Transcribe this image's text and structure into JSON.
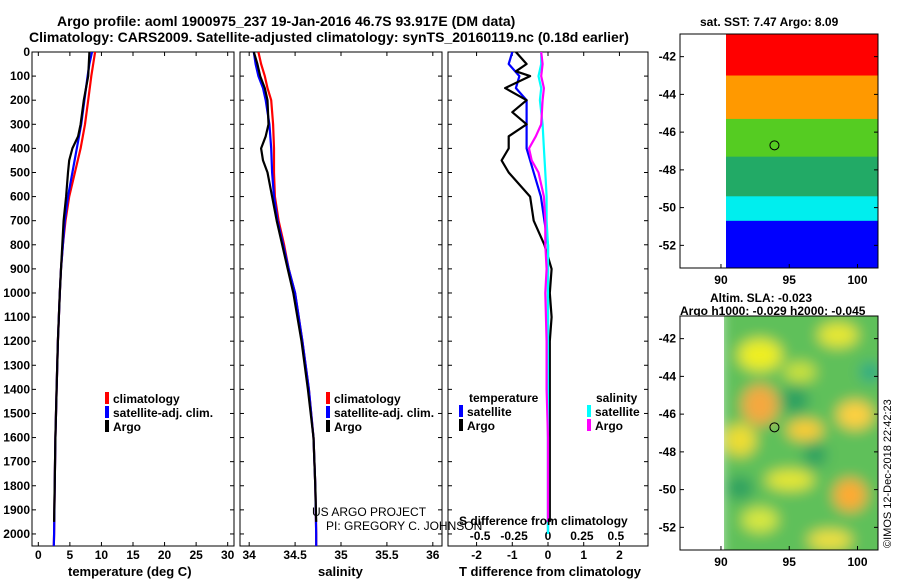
{
  "header": {
    "title1": "Argo profile: aoml 1900975_237 19-Jan-2016 46.7S 93.917E (DM data)",
    "title2": "Climatology: CARS2009. Satellite-adjusted climatology: synTS_20160119.nc (0.18d earlier)"
  },
  "side": {
    "sst_title": "sat. SST: 7.47 Argo: 8.09",
    "sla_title1": "Altim. SLA: -0.023",
    "sla_title2": "Argo h1000: -0.029 h2000: -0.045",
    "credit": "©IMOS 12-Dec-2018 22:42:23"
  },
  "colors": {
    "climatology": "#ff0000",
    "satellite": "#0000ff",
    "argo": "#000000",
    "sal_satellite": "#00ffff",
    "sal_argo": "#ff00ff"
  },
  "chart_data": [
    {
      "type": "line",
      "panel": "temperature",
      "xlabel": "temperature (deg C)",
      "xlim": [
        -1,
        31
      ],
      "xticks": [
        "0",
        "5",
        "10",
        "15",
        "20",
        "25",
        "30"
      ],
      "ylim": [
        0,
        2050
      ],
      "yticks": [
        "0",
        "100",
        "200",
        "300",
        "400",
        "500",
        "600",
        "700",
        "800",
        "900",
        "1000",
        "1100",
        "1200",
        "1300",
        "1400",
        "1500",
        "1600",
        "1700",
        "1800",
        "1900",
        "2000"
      ],
      "legend": [
        "climatology",
        "satellite-adj. clim.",
        "Argo"
      ],
      "series": [
        {
          "name": "climatology",
          "color": "#ff0000",
          "depth": [
            0,
            50,
            100,
            200,
            300,
            400,
            500,
            600,
            700,
            800,
            900,
            1000,
            1200,
            1400,
            1600,
            1800,
            2000,
            2050
          ],
          "values": [
            9.0,
            8.7,
            8.4,
            7.9,
            7.4,
            6.7,
            5.8,
            4.9,
            4.3,
            3.9,
            3.6,
            3.4,
            3.1,
            2.9,
            2.7,
            2.6,
            2.5,
            2.45
          ]
        },
        {
          "name": "satellite-adj. clim.",
          "color": "#0000ff",
          "depth": [
            0,
            50,
            100,
            200,
            300,
            400,
            500,
            600,
            700,
            800,
            900,
            1000,
            1200,
            1400,
            1600,
            1800,
            2000,
            2050
          ],
          "values": [
            8.5,
            8.1,
            7.8,
            7.3,
            6.8,
            6.1,
            5.4,
            4.7,
            4.2,
            3.9,
            3.6,
            3.4,
            3.1,
            2.9,
            2.7,
            2.6,
            2.5,
            2.45
          ]
        },
        {
          "name": "Argo",
          "color": "#000000",
          "depth": [
            0,
            50,
            100,
            200,
            300,
            350,
            400,
            450,
            500,
            600,
            700,
            800,
            900,
            1000,
            1200,
            1400,
            1600,
            1800,
            1950
          ],
          "values": [
            8.1,
            8.0,
            7.9,
            7.2,
            6.7,
            6.3,
            5.4,
            4.9,
            4.7,
            4.4,
            4.0,
            3.8,
            3.6,
            3.4,
            3.1,
            2.9,
            2.7,
            2.6,
            2.5
          ]
        }
      ]
    },
    {
      "type": "line",
      "panel": "salinity",
      "xlabel": "salinity",
      "xlim": [
        33.9,
        36.1
      ],
      "xticks": [
        "34",
        "34.5",
        "35",
        "35.5",
        "36"
      ],
      "ylim": [
        0,
        2050
      ],
      "legend": [
        "climatology",
        "satellite-adj. clim.",
        "Argo"
      ],
      "annotation": [
        "US ARGO PROJECT",
        "PI: GREGORY C. JOHNSON"
      ],
      "series": [
        {
          "name": "climatology",
          "color": "#ff0000",
          "depth": [
            0,
            50,
            100,
            150,
            200,
            300,
            400,
            500,
            600,
            700,
            800,
            900,
            1000,
            1200,
            1400,
            1600,
            1800,
            2000,
            2050
          ],
          "values": [
            34.1,
            34.13,
            34.17,
            34.2,
            34.24,
            34.26,
            34.27,
            34.27,
            34.28,
            34.32,
            34.38,
            34.43,
            34.5,
            34.58,
            34.65,
            34.7,
            34.72,
            34.73,
            34.73
          ]
        },
        {
          "name": "satellite-adj. clim.",
          "color": "#0000ff",
          "depth": [
            0,
            50,
            100,
            150,
            200,
            300,
            400,
            500,
            600,
            700,
            800,
            900,
            1000,
            1200,
            1400,
            1600,
            1800,
            2000,
            2050
          ],
          "values": [
            34.05,
            34.07,
            34.1,
            34.15,
            34.18,
            34.22,
            34.24,
            34.25,
            34.27,
            34.31,
            34.37,
            34.43,
            34.5,
            34.58,
            34.65,
            34.7,
            34.72,
            34.73,
            34.73
          ]
        },
        {
          "name": "Argo",
          "color": "#000000",
          "depth": [
            0,
            50,
            100,
            150,
            200,
            300,
            350,
            400,
            450,
            500,
            600,
            700,
            800,
            900,
            1000,
            1200,
            1400,
            1600,
            1800,
            1950
          ],
          "values": [
            34.05,
            34.09,
            34.12,
            34.17,
            34.2,
            34.21,
            34.18,
            34.13,
            34.15,
            34.2,
            34.25,
            34.3,
            34.36,
            34.42,
            34.48,
            34.57,
            34.64,
            34.7,
            34.72,
            34.73
          ]
        }
      ]
    },
    {
      "type": "line",
      "panel": "difference",
      "xlabel": "T difference from climatology",
      "xlabel_top": "S difference from climatology",
      "xlim": [
        -2.8,
        2.8
      ],
      "xticks": [
        "-2",
        "-1",
        "0",
        "1",
        "2"
      ],
      "sticks": [
        "-0.5",
        "-0.25",
        "0",
        "0.25",
        "0.5"
      ],
      "ylim": [
        0,
        2050
      ],
      "legend_temperature": {
        "title": "temperature",
        "items": [
          "satellite",
          "Argo"
        ]
      },
      "legend_salinity": {
        "title": "salinity",
        "items": [
          "satellite",
          "Argo"
        ]
      },
      "series": [
        {
          "name": "T satellite",
          "color": "#0000ff",
          "depth": [
            0,
            50,
            100,
            150,
            200,
            300,
            400,
            500,
            600,
            700,
            800,
            900,
            1000,
            1200,
            1400,
            1600,
            1800,
            2000
          ],
          "values": [
            -1.0,
            -1.1,
            -0.8,
            -0.9,
            -0.6,
            -0.6,
            -0.6,
            -0.4,
            -0.2,
            -0.1,
            0,
            0,
            0,
            0,
            0,
            0,
            0,
            0
          ]
        },
        {
          "name": "T Argo",
          "color": "#000000",
          "depth": [
            0,
            50,
            80,
            100,
            150,
            200,
            250,
            300,
            350,
            400,
            450,
            500,
            600,
            700,
            800,
            900,
            1000,
            1100,
            1200,
            1400,
            1600,
            1800,
            1950
          ],
          "values": [
            -0.9,
            -0.6,
            -0.9,
            -0.5,
            -1.2,
            -0.6,
            -1.0,
            -0.6,
            -1.1,
            -1.1,
            -1.3,
            -1.1,
            -0.5,
            -0.4,
            -0.1,
            0.1,
            0.05,
            0.1,
            0.05,
            0.05,
            0.05,
            0.05,
            0.05
          ]
        },
        {
          "name": "S satellite",
          "color": "#00ffff",
          "depth": [
            0,
            50,
            100,
            150,
            200,
            300,
            400,
            500,
            600,
            700,
            800,
            900,
            1000,
            1200,
            1400,
            1600,
            1800,
            2000
          ],
          "values": [
            -0.05,
            -0.05,
            -0.07,
            -0.05,
            -0.06,
            -0.04,
            -0.03,
            -0.02,
            -0.01,
            -0.01,
            0,
            0,
            0,
            0,
            0,
            0,
            0,
            0
          ]
        },
        {
          "name": "S Argo",
          "color": "#ff00ff",
          "depth": [
            0,
            50,
            100,
            150,
            200,
            300,
            350,
            400,
            450,
            500,
            600,
            700,
            800,
            900,
            1000,
            1200,
            1400,
            1600,
            1800,
            1950
          ],
          "values": [
            -0.05,
            -0.04,
            -0.05,
            -0.03,
            -0.04,
            -0.05,
            -0.09,
            -0.14,
            -0.12,
            -0.07,
            -0.03,
            -0.02,
            -0.02,
            -0.01,
            -0.02,
            -0.01,
            -0.01,
            0,
            0,
            0
          ]
        }
      ]
    },
    {
      "type": "heatmap",
      "panel": "sst_map",
      "title": "sat. SST: 7.47 Argo: 8.09",
      "xlim": [
        87,
        101.5
      ],
      "ylim": [
        -53.2,
        -40.8
      ],
      "xticks": [
        "90",
        "95",
        "100"
      ],
      "yticks": [
        "-42",
        "-44",
        "-46",
        "-48",
        "-50",
        "-52"
      ],
      "marker": {
        "lon": 93.917,
        "lat": -46.7
      },
      "bands": [
        {
          "lat_top": -40.8,
          "color": "#ff0000"
        },
        {
          "lat_top": -43.0,
          "color": "#ff9900"
        },
        {
          "lat_top": -45.3,
          "color": "#55cc22"
        },
        {
          "lat_top": -47.3,
          "color": "#22aa66"
        },
        {
          "lat_top": -49.4,
          "color": "#00eeee"
        },
        {
          "lat_top": -50.7,
          "color": "#0000ff"
        }
      ]
    },
    {
      "type": "heatmap",
      "panel": "sla_map",
      "title": "Altim. SLA: -0.023",
      "subtitle": "Argo h1000: -0.029 h2000: -0.045",
      "xlim": [
        87,
        101.5
      ],
      "ylim": [
        -53.2,
        -40.8
      ],
      "xticks": [
        "90",
        "95",
        "100"
      ],
      "yticks": [
        "-42",
        "-44",
        "-46",
        "-48",
        "-50",
        "-52"
      ],
      "marker": {
        "lon": 93.917,
        "lat": -46.7
      }
    }
  ]
}
